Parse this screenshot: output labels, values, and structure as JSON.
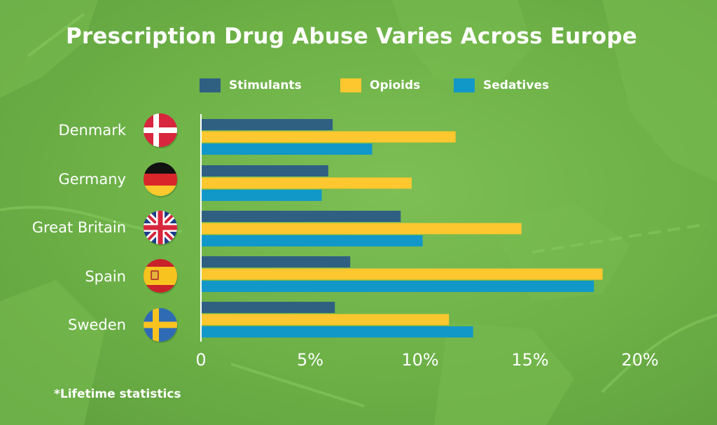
{
  "title": "Prescription Drug Abuse Varies Across Europe",
  "footnote": "*Lifetime statistics",
  "colors": {
    "stimulants": "#2f6082",
    "opioids": "#fdc72f",
    "sedatives": "#1297c9",
    "text": "#ffffff",
    "background": "#6cb046"
  },
  "legend": [
    {
      "label": "Stimulants",
      "color": "#2f6082"
    },
    {
      "label": "Opioids",
      "color": "#fdc72f"
    },
    {
      "label": "Sedatives",
      "color": "#1297c9"
    }
  ],
  "countries": [
    {
      "label": "Denmark",
      "flag_icon": "denmark-flag-icon"
    },
    {
      "label": "Germany",
      "flag_icon": "germany-flag-icon"
    },
    {
      "label": "Great Britain",
      "flag_icon": "great-britain-flag-icon"
    },
    {
      "label": "Spain",
      "flag_icon": "spain-flag-icon"
    },
    {
      "label": "Sweden",
      "flag_icon": "sweden-flag-icon"
    }
  ],
  "chart_data": {
    "type": "bar",
    "orientation": "horizontal",
    "title": "Prescription Drug Abuse Varies Across Europe",
    "categories": [
      "Denmark",
      "Germany",
      "Great Britain",
      "Spain",
      "Sweden"
    ],
    "series": [
      {
        "name": "Stimulants",
        "values": [
          6.0,
          5.8,
          9.1,
          6.8,
          6.1
        ]
      },
      {
        "name": "Opioids",
        "values": [
          11.6,
          9.6,
          14.6,
          18.3,
          11.3
        ]
      },
      {
        "name": "Sedatives",
        "values": [
          7.8,
          5.5,
          10.1,
          17.9,
          12.4
        ]
      }
    ],
    "xlim": [
      0,
      20
    ],
    "xticks": [
      "0",
      "5%",
      "10%",
      "15%",
      "20%"
    ],
    "tick_values": [
      0,
      5,
      10,
      15,
      20
    ],
    "legend_position": "top",
    "grid": false
  }
}
